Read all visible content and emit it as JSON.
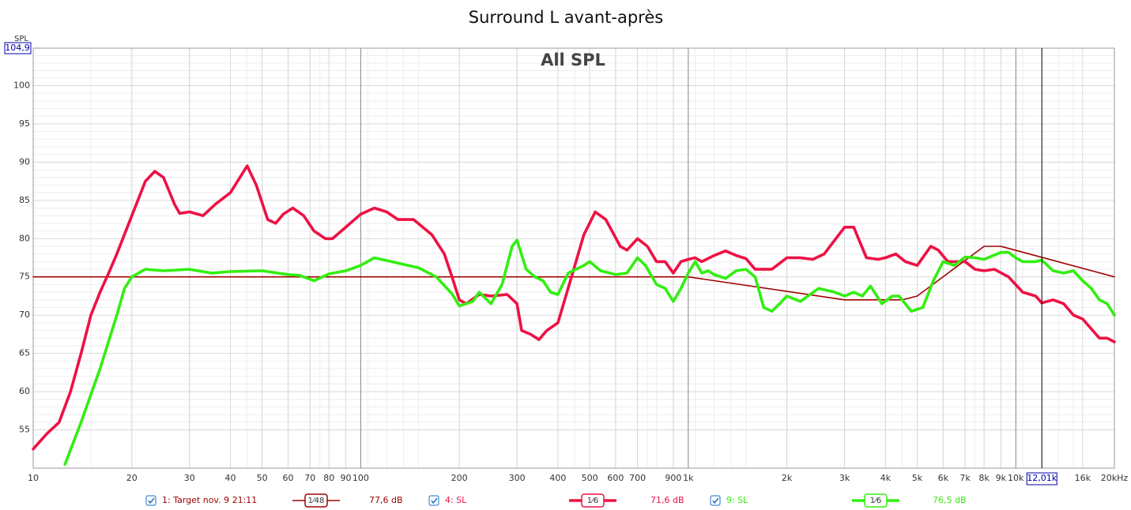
{
  "chart_data": {
    "type": "line",
    "title": "Surround L avant-après",
    "annotation": "All SPL",
    "y_label": "SPL",
    "log_x": true,
    "grid": true,
    "xlim": [
      10,
      20000
    ],
    "ylim": [
      50,
      104.9
    ],
    "xticks": [
      10,
      20,
      30,
      40,
      50,
      60,
      70,
      80,
      90,
      100,
      200,
      300,
      400,
      500,
      600,
      700,
      900,
      {
        "value": 1000,
        "label": "1k"
      },
      {
        "value": 2000,
        "label": "2k"
      },
      {
        "value": 3000,
        "label": "3k"
      },
      {
        "value": 4000,
        "label": "4k"
      },
      {
        "value": 5000,
        "label": "5k"
      },
      {
        "value": 6000,
        "label": "6k"
      },
      {
        "value": 7000,
        "label": "7k"
      },
      {
        "value": 8000,
        "label": "8k"
      },
      {
        "value": 9000,
        "label": "9k"
      },
      {
        "value": 10000,
        "label": "10k"
      },
      {
        "value": 16000,
        "label": "16k"
      },
      {
        "value": 20000,
        "label": "20kHz"
      }
    ],
    "yticks": [
      55,
      60,
      65,
      70,
      75,
      80,
      85,
      90,
      95,
      100,
      {
        "value": 104.9,
        "label": "104,9"
      }
    ],
    "cursor": {
      "value": 12010,
      "label": "12,01k"
    },
    "series": [
      {
        "name": "1: Target nov. 9 21:11",
        "color": "#a00000",
        "smoothing": "1⁄48",
        "level": "77,6 dB",
        "x": [
          10,
          1000,
          3000,
          4500,
          5000,
          8000,
          9000,
          20000
        ],
        "values": [
          75,
          75,
          72,
          72,
          72.5,
          79,
          79,
          75
        ]
      },
      {
        "name": "4: SL",
        "color": "#ee1144",
        "smoothing": "1⁄6",
        "level": "71,6 dB",
        "x": [
          10,
          11,
          12,
          13,
          14,
          15,
          16,
          17,
          18,
          20,
          22,
          23.5,
          25,
          27,
          28,
          30,
          33,
          36,
          40,
          45,
          48,
          52,
          55,
          58,
          62,
          67,
          72,
          78,
          82,
          90,
          100,
          110,
          120,
          130,
          145,
          165,
          180,
          190,
          200,
          210,
          230,
          250,
          280,
          300,
          310,
          330,
          350,
          370,
          400,
          440,
          480,
          520,
          560,
          620,
          650,
          700,
          750,
          800,
          850,
          900,
          950,
          1000,
          1050,
          1100,
          1200,
          1300,
          1400,
          1500,
          1600,
          1800,
          2000,
          2200,
          2400,
          2600,
          3000,
          3200,
          3500,
          3800,
          4000,
          4300,
          4600,
          5000,
          5500,
          5800,
          6200,
          7000,
          7500,
          8000,
          8600,
          9500,
          10500,
          11500,
          12000,
          13000,
          14000,
          15000,
          16000,
          18000,
          19000,
          20000
        ],
        "values": [
          52.5,
          54.5,
          56,
          60,
          65,
          70,
          73,
          75.5,
          78,
          83,
          87.5,
          88.8,
          88,
          84.5,
          83.3,
          83.5,
          83,
          84.5,
          86,
          89.5,
          87,
          82.5,
          82,
          83.2,
          84,
          83,
          81,
          80,
          80,
          81.5,
          83.2,
          84,
          83.5,
          82.5,
          82.5,
          80.5,
          78,
          75,
          72,
          71.5,
          72.7,
          72.5,
          72.7,
          71.5,
          68,
          67.5,
          66.8,
          68,
          69,
          75,
          80.5,
          83.5,
          82.5,
          79,
          78.5,
          80,
          79,
          77,
          77,
          75.5,
          77,
          77.3,
          77.5,
          77,
          77.8,
          78.4,
          77.8,
          77.4,
          76,
          76,
          77.5,
          77.5,
          77.3,
          78,
          81.5,
          81.5,
          77.5,
          77.3,
          77.5,
          78,
          77,
          76.5,
          79,
          78.5,
          77,
          77,
          76,
          75.8,
          76,
          75,
          73,
          72.5,
          71.6,
          72,
          71.5,
          70,
          69.5,
          67,
          67,
          66.5
        ]
      },
      {
        "name": "9: SL",
        "color": "#33ee11",
        "smoothing": "1⁄6",
        "level": "76,5 dB",
        "x": [
          12.5,
          14,
          16,
          18,
          19,
          20,
          22,
          25,
          30,
          35,
          40,
          50,
          60,
          65,
          72,
          80,
          90,
          100,
          110,
          130,
          150,
          170,
          190,
          200,
          220,
          230,
          250,
          270,
          290,
          300,
          320,
          340,
          360,
          380,
          400,
          430,
          480,
          500,
          540,
          600,
          650,
          700,
          740,
          800,
          850,
          900,
          950,
          1000,
          1050,
          1100,
          1150,
          1200,
          1300,
          1400,
          1500,
          1600,
          1700,
          1800,
          1900,
          2000,
          2200,
          2500,
          2800,
          3000,
          3200,
          3400,
          3600,
          3900,
          4200,
          4400,
          4800,
          5200,
          5600,
          6000,
          6500,
          7000,
          7500,
          8000,
          9000,
          9500,
          10000,
          10500,
          11500,
          12000,
          13000,
          14000,
          15000,
          16000,
          17000,
          18000,
          19000,
          20000
        ],
        "values": [
          50.5,
          56,
          63,
          70,
          73.5,
          75,
          76,
          75.8,
          76,
          75.5,
          75.7,
          75.8,
          75.3,
          75.2,
          74.5,
          75.4,
          75.8,
          76.5,
          77.5,
          76.8,
          76.2,
          75,
          72.8,
          71.2,
          71.8,
          73,
          71.5,
          74,
          79,
          79.8,
          76,
          75,
          74.5,
          73,
          72.7,
          75.5,
          76.5,
          77,
          75.8,
          75.3,
          75.5,
          77.5,
          76.5,
          74,
          73.5,
          71.8,
          73.5,
          75.5,
          77,
          75.5,
          75.8,
          75.3,
          74.8,
          75.8,
          76,
          75,
          71,
          70.5,
          71.5,
          72.5,
          71.8,
          73.5,
          73,
          72.5,
          73,
          72.5,
          73.8,
          71.5,
          72.5,
          72.5,
          70.5,
          71,
          74.5,
          77,
          76.5,
          77.6,
          77.5,
          77.3,
          78.2,
          78.2,
          77.5,
          77,
          77,
          77.2,
          75.8,
          75.5,
          75.8,
          74.5,
          73.5,
          72,
          71.5,
          70
        ]
      }
    ]
  }
}
